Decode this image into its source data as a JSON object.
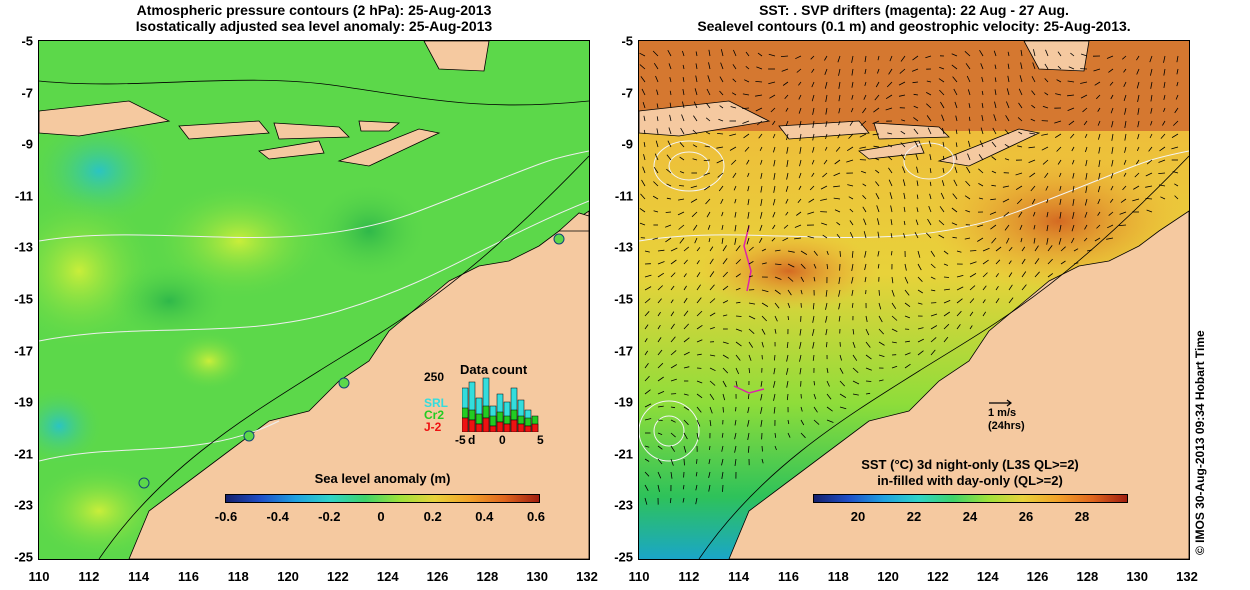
{
  "left_panel": {
    "title_line1": "Atmospheric pressure contours (2 hPa): 25-Aug-2013",
    "title_line2": "Isostatically adjusted sea level anomaly: 25-Aug-2013",
    "colorbar_label": "Sea level anomaly (m)",
    "colorbar_ticks": [
      "-0.6",
      "-0.4",
      "-0.2",
      "0",
      "0.2",
      "0.4",
      "0.6"
    ],
    "data_count": {
      "title": "Data count",
      "ymax_label": "250",
      "legend": [
        {
          "name": "SRL",
          "color": "#33dddd"
        },
        {
          "name": "Cr2",
          "color": "#22cc22"
        },
        {
          "name": "J-2",
          "color": "#ee1111"
        }
      ],
      "xticks": [
        "-5",
        "0",
        "5"
      ],
      "xlabel_mark": "d"
    }
  },
  "right_panel": {
    "title_line1": "SST: . SVP drifters (magenta): 22 Aug - 27 Aug.",
    "title_line2": "Sealevel contours (0.1 m) and geostrophic velocity: 25-Aug-2013.",
    "vector_key_line1": "1 m/s",
    "vector_key_line2": "(24hrs)",
    "colorbar_label_line1": "SST (°C)  3d night-only (L3S QL>=2)",
    "colorbar_label_line2": "in-filled with day-only (QL>=2)",
    "colorbar_ticks": [
      "20",
      "22",
      "24",
      "26",
      "28"
    ]
  },
  "axes": {
    "y_ticks": [
      "-5",
      "-7",
      "-9",
      "-11",
      "-13",
      "-15",
      "-17",
      "-19",
      "-21",
      "-23",
      "-25"
    ],
    "x_ticks": [
      "110",
      "112",
      "114",
      "116",
      "118",
      "120",
      "122",
      "124",
      "126",
      "128",
      "130",
      "132"
    ]
  },
  "footer": "© IMOS 30-Aug-2013 09:34 Hobart Time",
  "colors": {
    "land": "#f5c9a0",
    "sla_ocean": "#5cd84a",
    "sst_ocean": "#f2b13a"
  }
}
